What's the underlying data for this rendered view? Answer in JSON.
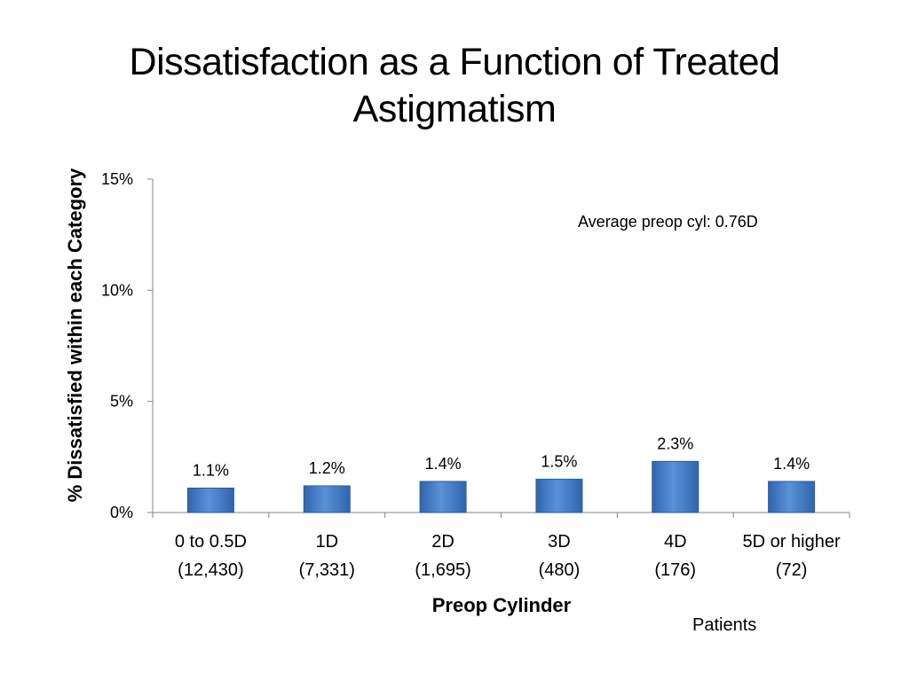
{
  "slide": {
    "title": "Dissatisfaction as a Function of Treated Astigmatism",
    "annotation": "Average preop cyl: 0.76D",
    "footnote": "Patients"
  },
  "chart_data": {
    "type": "bar",
    "title": "",
    "xlabel": "Preop Cylinder",
    "ylabel": "% Dissatisfied within each Category",
    "categories": [
      "0 to 0.5D",
      "1D",
      "2D",
      "3D",
      "4D",
      "5D or higher"
    ],
    "category_counts": [
      "(12,430)",
      "(7,331)",
      "(1,695)",
      "(480)",
      "(176)",
      "(72)"
    ],
    "values": [
      1.1,
      1.2,
      1.4,
      1.5,
      2.3,
      1.4
    ],
    "value_labels": [
      "1.1%",
      "1.2%",
      "1.4%",
      "1.5%",
      "2.3%",
      "1.4%"
    ],
    "ylim": [
      0,
      15
    ],
    "yticks": [
      0,
      5,
      10,
      15
    ],
    "ytick_labels": [
      "0%",
      "5%",
      "10%",
      "15%"
    ],
    "grid": false,
    "legend": "none",
    "colors": {
      "bar": "#4F81BD",
      "bar_dark": "#2E5C99",
      "axis": "#868686"
    }
  }
}
